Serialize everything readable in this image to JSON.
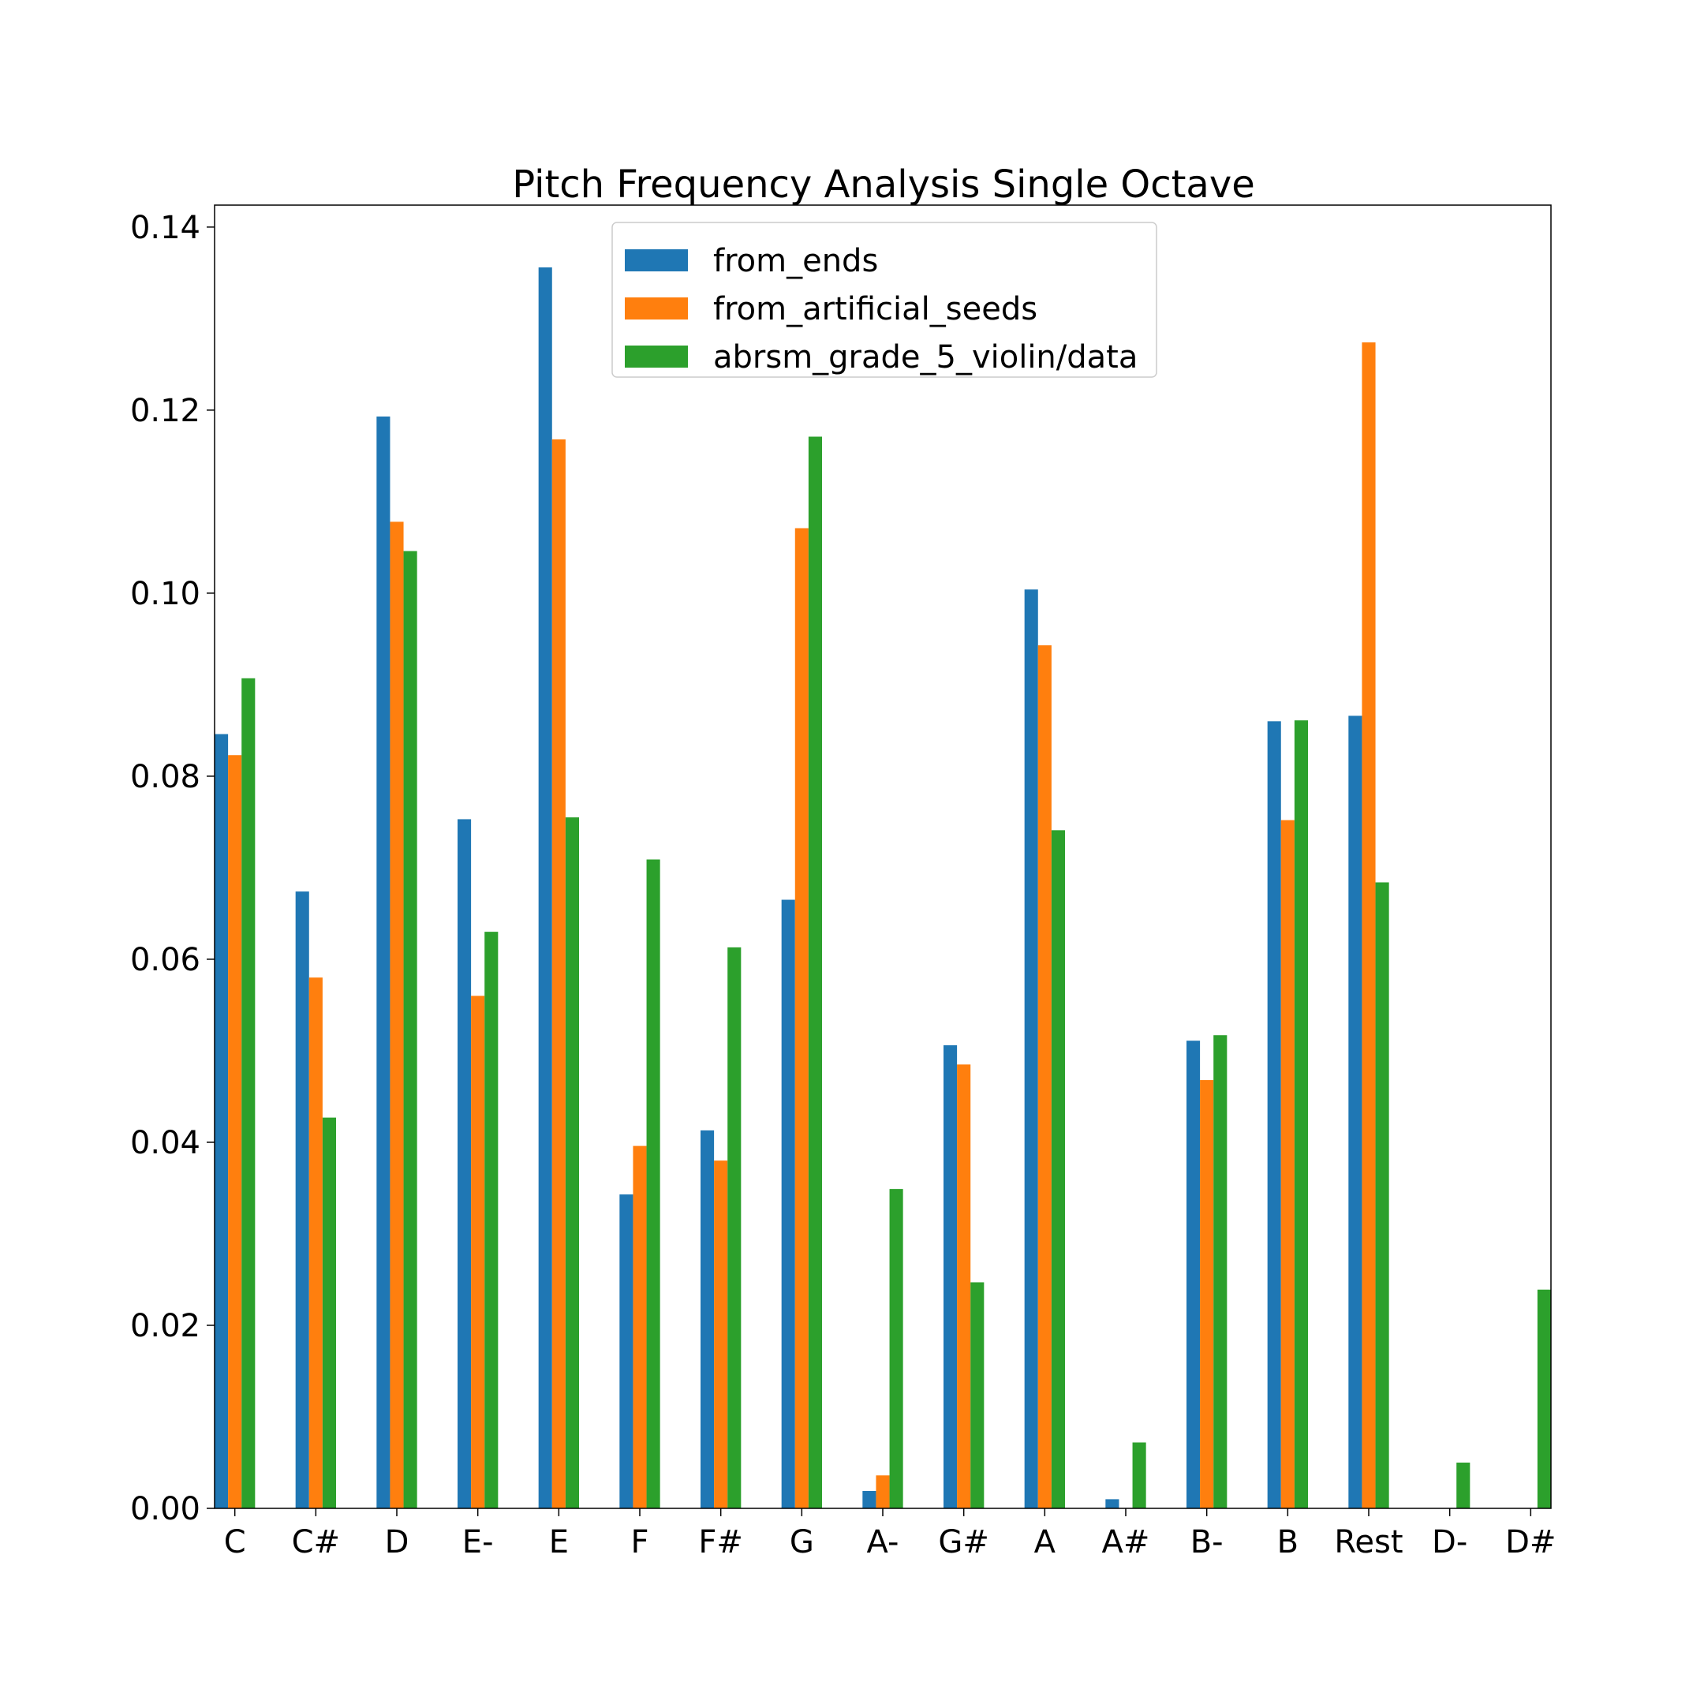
{
  "chart_data": {
    "type": "bar",
    "title": "Pitch Frequency Analysis Single Octave",
    "xlabel": "",
    "ylabel": "",
    "categories": [
      "C",
      "C#",
      "D",
      "E-",
      "E",
      "F",
      "F#",
      "G",
      "A-",
      "G#",
      "A",
      "A#",
      "B-",
      "B",
      "Rest",
      "D-",
      "D#"
    ],
    "series": [
      {
        "name": "from_ends",
        "color": "#1f77b4",
        "values": [
          0.0846,
          0.0674,
          0.1193,
          0.0753,
          0.1356,
          0.0343,
          0.0413,
          0.0665,
          0.0019,
          0.0506,
          0.1004,
          0.001,
          0.0511,
          0.086,
          0.0866,
          0.0,
          0.0
        ]
      },
      {
        "name": "from_artificial_seeds",
        "color": "#ff7f0e",
        "values": [
          0.0823,
          0.058,
          0.1078,
          0.056,
          0.1168,
          0.0396,
          0.038,
          0.1071,
          0.0036,
          0.0485,
          0.0943,
          0.0,
          0.0468,
          0.0752,
          0.1274,
          0.0,
          0.0
        ]
      },
      {
        "name": "abrsm_grade_5_violin/data",
        "color": "#2ca02c",
        "values": [
          0.0907,
          0.0427,
          0.1046,
          0.063,
          0.0755,
          0.0709,
          0.0613,
          0.1171,
          0.0349,
          0.0247,
          0.0741,
          0.0072,
          0.0517,
          0.0861,
          0.0684,
          0.005,
          0.0239
        ]
      }
    ],
    "ylim": [
      0,
      0.1424
    ],
    "yticks": [
      "0.00",
      "0.02",
      "0.04",
      "0.06",
      "0.08",
      "0.10",
      "0.12",
      "0.14"
    ],
    "grid": false,
    "legend_position": "top-center"
  }
}
